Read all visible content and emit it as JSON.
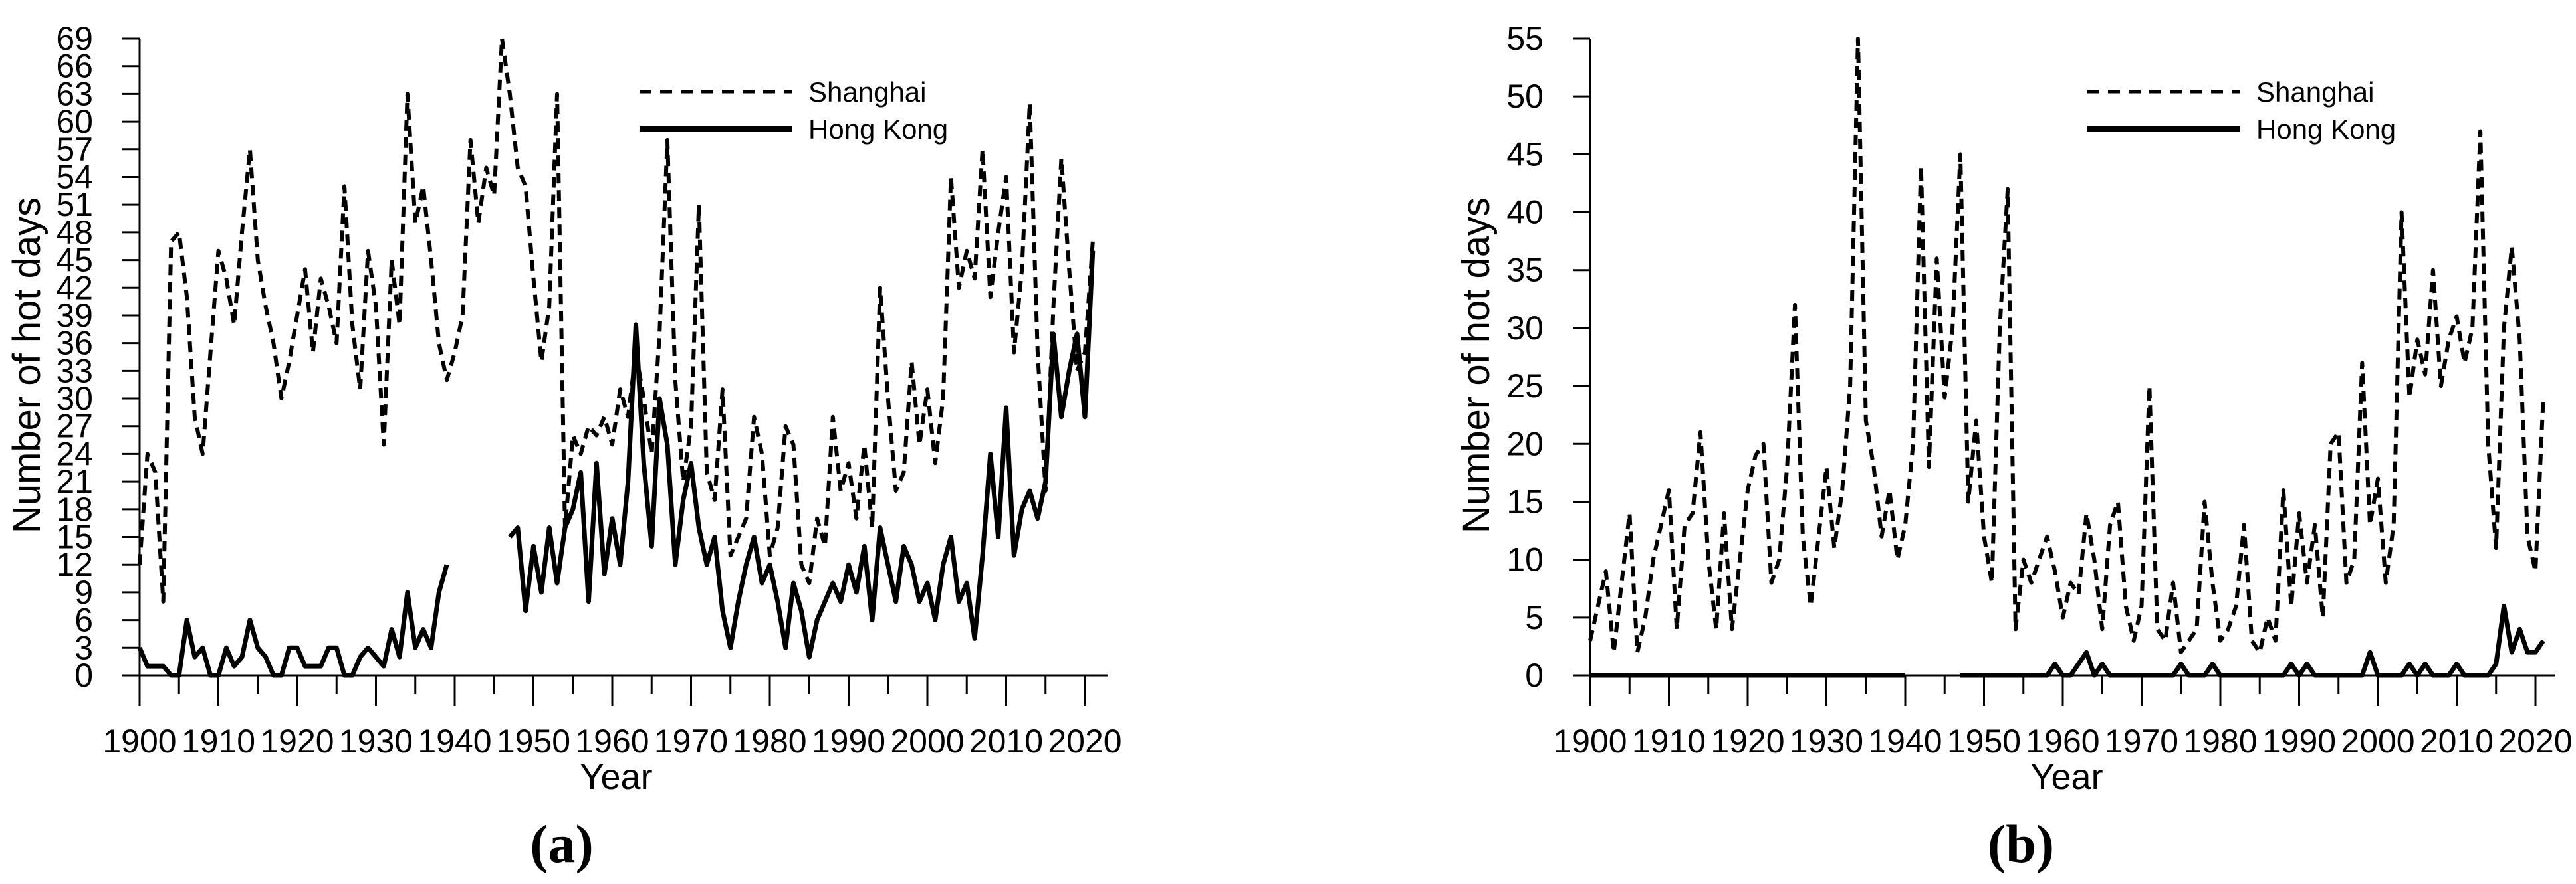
{
  "figure": {
    "background": "#ffffff",
    "line_color": "#000000",
    "captions": [
      "(a)",
      "(b)"
    ]
  },
  "chart_data": [
    {
      "type": "line",
      "panel": "a",
      "xlabel": "Year",
      "ylabel": "Number of hot days",
      "grid": false,
      "legend_position": "top-center-inside",
      "ylim": [
        0,
        69
      ],
      "y_ticks": [
        0,
        3,
        6,
        9,
        12,
        15,
        18,
        21,
        24,
        27,
        30,
        33,
        36,
        39,
        42,
        45,
        48,
        51,
        54,
        57,
        60,
        63,
        66,
        69
      ],
      "x_tick_labels": [
        1900,
        1910,
        1920,
        1930,
        1940,
        1950,
        1960,
        1970,
        1980,
        1990,
        2000,
        2010,
        2020
      ],
      "x_minor_tick_step": 5,
      "x_range": [
        1900,
        2021
      ],
      "series": [
        {
          "name": "Shanghai",
          "style": "dashed",
          "values": [
            12,
            24,
            22,
            8,
            47,
            48,
            41,
            28,
            24,
            35,
            46,
            43,
            38,
            48,
            57,
            45,
            40,
            36,
            30,
            34,
            39,
            44,
            35,
            43,
            40,
            36,
            53,
            38,
            31,
            46,
            40,
            25,
            45,
            38,
            63,
            49,
            53,
            45,
            36,
            32,
            35,
            39,
            58,
            49,
            55,
            52,
            69,
            63,
            55,
            53,
            43,
            34,
            40,
            63,
            16,
            26,
            24,
            27,
            26,
            28,
            25,
            31,
            28,
            35,
            30,
            24,
            37,
            58,
            32,
            21,
            27,
            51,
            22,
            19,
            31,
            13,
            15,
            17,
            28,
            24,
            13,
            16,
            27,
            25,
            12,
            10,
            17,
            14,
            28,
            20,
            23,
            17,
            25,
            16,
            42,
            30,
            20,
            22,
            34,
            25,
            31,
            23,
            30,
            54,
            42,
            46,
            43,
            57,
            41,
            48,
            54,
            35,
            44,
            62,
            35,
            20,
            40,
            56,
            44,
            33,
            35,
            47
          ]
        },
        {
          "name": "Hong Kong",
          "style": "solid",
          "values": [
            3,
            1,
            1,
            1,
            0,
            0,
            6,
            2,
            3,
            0,
            0,
            3,
            1,
            2,
            6,
            3,
            2,
            0,
            0,
            3,
            3,
            1,
            1,
            1,
            3,
            3,
            0,
            0,
            2,
            3,
            2,
            1,
            5,
            2,
            9,
            3,
            5,
            3,
            9,
            12,
            null,
            null,
            null,
            null,
            null,
            null,
            null,
            15,
            16,
            7,
            14,
            9,
            16,
            10,
            16,
            18,
            22,
            8,
            23,
            11,
            17,
            12,
            21,
            38,
            23,
            14,
            30,
            25,
            12,
            19,
            23,
            16,
            12,
            15,
            7,
            3,
            8,
            12,
            15,
            10,
            12,
            8,
            3,
            10,
            7,
            2,
            6,
            8,
            10,
            8,
            12,
            9,
            14,
            6,
            16,
            12,
            8,
            14,
            12,
            8,
            10,
            6,
            12,
            15,
            8,
            10,
            4,
            13,
            24,
            15,
            29,
            13,
            18,
            20,
            17,
            21,
            37,
            28,
            33,
            37,
            28,
            46
          ]
        }
      ]
    },
    {
      "type": "line",
      "panel": "b",
      "xlabel": "Year",
      "ylabel": "Number of hot days",
      "grid": false,
      "legend_position": "top-center-inside",
      "ylim": [
        0,
        55
      ],
      "y_ticks": [
        0,
        5,
        10,
        15,
        20,
        25,
        30,
        35,
        40,
        45,
        50,
        55
      ],
      "x_tick_labels": [
        1900,
        1910,
        1920,
        1930,
        1940,
        1950,
        1960,
        1970,
        1980,
        1990,
        2000,
        2010,
        2020
      ],
      "x_minor_tick_step": 5,
      "x_range": [
        1900,
        2021
      ],
      "series": [
        {
          "name": "Shanghai",
          "style": "dashed",
          "values": [
            3,
            6,
            9,
            2,
            8,
            14,
            2,
            5,
            10,
            13,
            16,
            4,
            13,
            14,
            21,
            10,
            4,
            14,
            4,
            10,
            16,
            19,
            20,
            8,
            10,
            18,
            32,
            12,
            6,
            12,
            18,
            11,
            16,
            25,
            55,
            22,
            18,
            12,
            16,
            10,
            13,
            20,
            44,
            18,
            36,
            24,
            30,
            45,
            15,
            22,
            12,
            8,
            30,
            42,
            4,
            10,
            8,
            10,
            12,
            9,
            5,
            8,
            7,
            14,
            10,
            4,
            13,
            15,
            6,
            3,
            6,
            25,
            4,
            3,
            8,
            2,
            3,
            4,
            15,
            8,
            3,
            4,
            6,
            13,
            3,
            2,
            5,
            3,
            16,
            6,
            14,
            8,
            13,
            5,
            20,
            21,
            8,
            10,
            27,
            13,
            17,
            8,
            13,
            40,
            24,
            29,
            26,
            35,
            25,
            29,
            31,
            27,
            30,
            47,
            20,
            11,
            30,
            37,
            29,
            12,
            9,
            24
          ]
        },
        {
          "name": "Hong Kong",
          "style": "solid",
          "values": [
            0,
            0,
            0,
            0,
            0,
            0,
            0,
            0,
            0,
            0,
            0,
            0,
            0,
            0,
            0,
            0,
            0,
            0,
            0,
            0,
            0,
            0,
            0,
            0,
            0,
            0,
            0,
            0,
            0,
            0,
            0,
            0,
            0,
            0,
            0,
            0,
            0,
            0,
            0,
            0,
            0,
            null,
            null,
            null,
            null,
            null,
            null,
            0,
            0,
            0,
            0,
            0,
            0,
            0,
            0,
            0,
            0,
            0,
            0,
            1,
            0,
            0,
            1,
            2,
            0,
            1,
            0,
            0,
            0,
            0,
            0,
            0,
            0,
            0,
            0,
            1,
            0,
            0,
            0,
            1,
            0,
            0,
            0,
            0,
            0,
            0,
            0,
            0,
            0,
            1,
            0,
            1,
            0,
            0,
            0,
            0,
            0,
            0,
            0,
            2,
            0,
            0,
            0,
            0,
            1,
            0,
            1,
            0,
            0,
            0,
            1,
            0,
            0,
            0,
            0,
            1,
            6,
            2,
            4,
            2,
            2,
            3
          ]
        }
      ]
    }
  ]
}
